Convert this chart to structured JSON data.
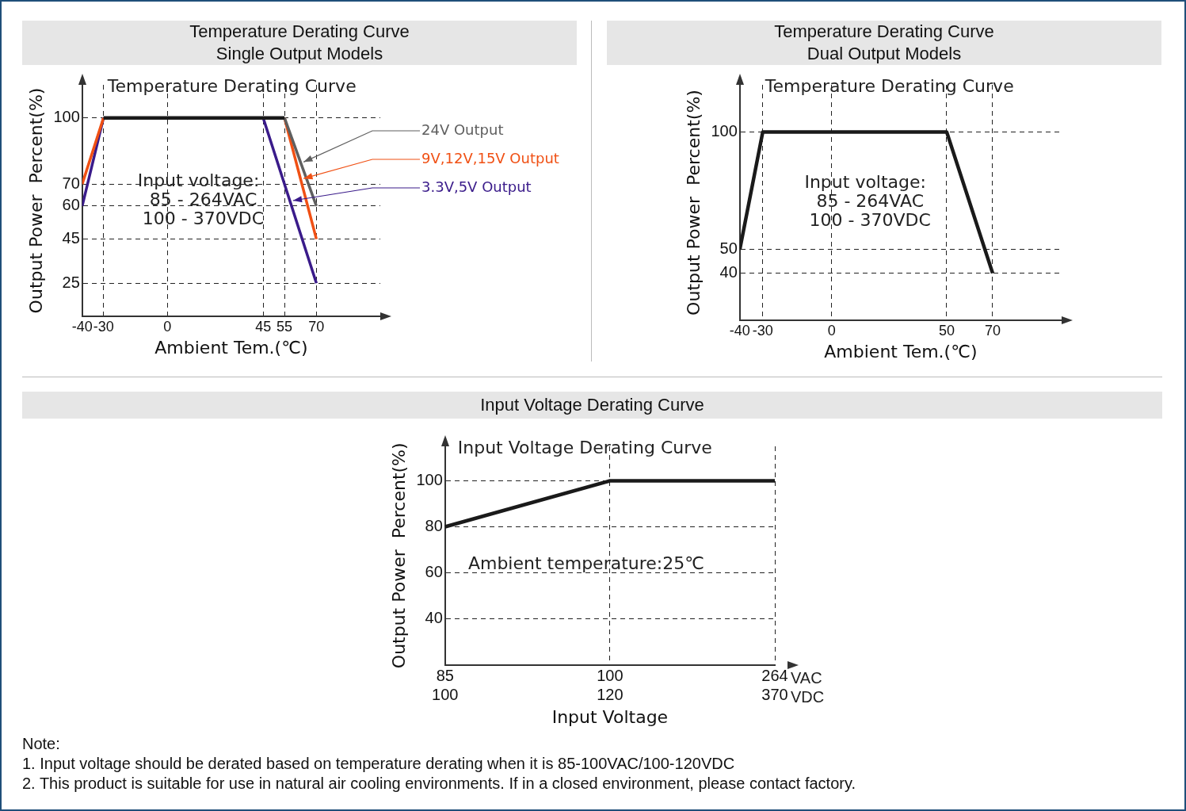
{
  "chart_data": [
    {
      "type": "line",
      "title": "Temperature Derating Curve",
      "subtitle": "Single Output Models",
      "xlabel": "Ambient Tem.(℃)",
      "ylabel": "Output Power  Percent(%)",
      "xlim": [
        -40,
        100
      ],
      "xticks": [
        -40,
        -30,
        0,
        45,
        55,
        70
      ],
      "ylim": [
        10,
        115
      ],
      "yticks": [
        25,
        45,
        60,
        70,
        100
      ],
      "grid": true,
      "marker": "none",
      "series": [
        {
          "color": "#1a1a1a",
          "x": [
            -30,
            55
          ],
          "values": [
            100,
            100
          ]
        },
        {
          "name": "24V Output",
          "color": "#5f5f5f",
          "x": [
            55,
            70
          ],
          "values": [
            100,
            60
          ]
        },
        {
          "name": "9V,12V,15V Output",
          "color": "#f05014",
          "x": [
            -40,
            -30,
            0,
            55,
            70
          ],
          "values": [
            70,
            100,
            null,
            100,
            45
          ]
        },
        {
          "name": "3.3V,5V Output",
          "color": "#3a1b8a",
          "x": [
            -40,
            -30,
            0,
            45,
            70
          ],
          "values": [
            60,
            100,
            null,
            100,
            25
          ]
        }
      ],
      "annotations": [
        "Temperature Derating Curve",
        "Input voltage:",
        "85 - 264VAC",
        "100 - 370VDC"
      ]
    },
    {
      "type": "line",
      "title": "Temperature Derating Curve",
      "subtitle": "Dual Output Models",
      "xlabel": "Ambient Tem.(℃)",
      "ylabel": "Output Power  Percent(%)",
      "xlim": [
        -40,
        100
      ],
      "xticks": [
        -40,
        -30,
        0,
        50,
        70
      ],
      "ylim": [
        20,
        120
      ],
      "yticks": [
        40,
        50,
        100
      ],
      "grid": true,
      "marker": "none",
      "series": [
        {
          "color": "#1a1a1a",
          "x": [
            -40,
            -30,
            50,
            70
          ],
          "values": [
            50,
            100,
            100,
            40
          ]
        }
      ],
      "annotations": [
        "Temperature Derating Curve",
        "Input voltage:",
        "85 - 264VAC",
        "100 - 370VDC"
      ]
    },
    {
      "type": "line",
      "title": "Input Voltage Derating Curve",
      "xlabel": "Input Voltage",
      "ylabel": "Output Power  Percent(%)",
      "categories": [
        "85\n100",
        "100\n120",
        "264\n370"
      ],
      "ylim": [
        20,
        115
      ],
      "yticks": [
        40,
        60,
        80,
        100
      ],
      "grid": true,
      "marker": "none",
      "series": [
        {
          "color": "#1a1a1a",
          "values": [
            80,
            100,
            100
          ]
        }
      ],
      "annotations": [
        "Input Voltage Derating Curve",
        "Ambient temperature:25℃",
        "VAC\nVDC",
        "Note:",
        "1. Input voltage should be derated based on temperature derating when it is 85-100VAC/100-120VDC",
        "2. This product is suitable for use in natural air cooling environments. If in a closed environment, please contact factory."
      ]
    }
  ]
}
